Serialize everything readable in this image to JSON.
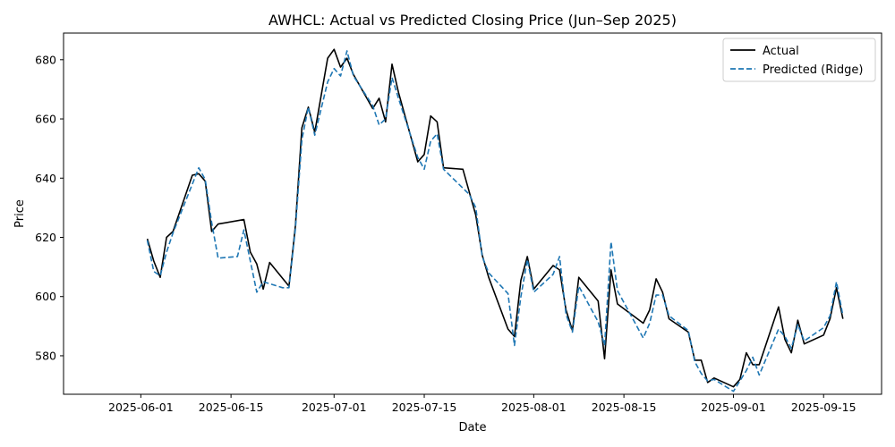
{
  "chart_data": {
    "type": "line",
    "title": "AWHCL: Actual vs Predicted Closing Price (Jun–Sep 2025)",
    "xlabel": "Date",
    "ylabel": "Price",
    "xlim": [
      "2025-05-20",
      "2025-09-24"
    ],
    "ylim": [
      567,
      689
    ],
    "x_ticks": [
      "2025-06-01",
      "2025-06-15",
      "2025-07-01",
      "2025-07-15",
      "2025-08-01",
      "2025-08-15",
      "2025-09-01",
      "2025-09-15"
    ],
    "y_ticks": [
      580,
      600,
      620,
      640,
      660,
      680
    ],
    "legend_position": "upper right",
    "grid": false,
    "series": [
      {
        "name": "Actual",
        "color": "#000000",
        "style": "solid",
        "points": [
          [
            "2025-06-02",
            619.5
          ],
          [
            "2025-06-03",
            612.0
          ],
          [
            "2025-06-04",
            606.5
          ],
          [
            "2025-06-05",
            620.0
          ],
          [
            "2025-06-06",
            622.0
          ],
          [
            "2025-06-09",
            641.0
          ],
          [
            "2025-06-10",
            641.5
          ],
          [
            "2025-06-11",
            639.0
          ],
          [
            "2025-06-12",
            622.0
          ],
          [
            "2025-06-13",
            624.5
          ],
          [
            "2025-06-17",
            626.0
          ],
          [
            "2025-06-18",
            615.0
          ],
          [
            "2025-06-19",
            611.0
          ],
          [
            "2025-06-20",
            602.5
          ],
          [
            "2025-06-21",
            611.5
          ],
          [
            "2025-06-24",
            603.5
          ],
          [
            "2025-06-25",
            624.0
          ],
          [
            "2025-06-26",
            657.0
          ],
          [
            "2025-06-27",
            664.0
          ],
          [
            "2025-06-28",
            655.5
          ],
          [
            "2025-06-30",
            680.5
          ],
          [
            "2025-07-01",
            683.5
          ],
          [
            "2025-07-02",
            677.5
          ],
          [
            "2025-07-03",
            680.5
          ],
          [
            "2025-07-04",
            675.0
          ],
          [
            "2025-07-07",
            663.5
          ],
          [
            "2025-07-08",
            667.0
          ],
          [
            "2025-07-09",
            659.0
          ],
          [
            "2025-07-10",
            678.5
          ],
          [
            "2025-07-11",
            669.0
          ],
          [
            "2025-07-14",
            645.5
          ],
          [
            "2025-07-15",
            648.0
          ],
          [
            "2025-07-16",
            661.0
          ],
          [
            "2025-07-17",
            659.0
          ],
          [
            "2025-07-18",
            643.5
          ],
          [
            "2025-07-21",
            643.0
          ],
          [
            "2025-07-23",
            627.5
          ],
          [
            "2025-07-24",
            614.0
          ],
          [
            "2025-07-25",
            606.5
          ],
          [
            "2025-07-28",
            589.0
          ],
          [
            "2025-07-29",
            586.5
          ],
          [
            "2025-07-30",
            605.5
          ],
          [
            "2025-07-31",
            613.5
          ],
          [
            "2025-08-01",
            602.5
          ],
          [
            "2025-08-04",
            610.5
          ],
          [
            "2025-08-05",
            609.0
          ],
          [
            "2025-08-06",
            595.5
          ],
          [
            "2025-08-07",
            588.5
          ],
          [
            "2025-08-08",
            606.5
          ],
          [
            "2025-08-11",
            598.5
          ],
          [
            "2025-08-12",
            579.0
          ],
          [
            "2025-08-13",
            609.0
          ],
          [
            "2025-08-14",
            597.5
          ],
          [
            "2025-08-18",
            591.0
          ],
          [
            "2025-08-19",
            595.5
          ],
          [
            "2025-08-20",
            606.0
          ],
          [
            "2025-08-21",
            601.5
          ],
          [
            "2025-08-22",
            592.5
          ],
          [
            "2025-08-25",
            588.0
          ],
          [
            "2025-08-26",
            578.5
          ],
          [
            "2025-08-27",
            578.5
          ],
          [
            "2025-08-28",
            571.0
          ],
          [
            "2025-08-29",
            572.5
          ],
          [
            "2025-09-01",
            569.5
          ],
          [
            "2025-09-02",
            572.0
          ],
          [
            "2025-09-03",
            581.0
          ],
          [
            "2025-09-04",
            577.0
          ],
          [
            "2025-09-05",
            577.0
          ],
          [
            "2025-09-08",
            596.5
          ],
          [
            "2025-09-09",
            585.5
          ],
          [
            "2025-09-10",
            581.0
          ],
          [
            "2025-09-11",
            592.0
          ],
          [
            "2025-09-12",
            584.0
          ],
          [
            "2025-09-15",
            587.0
          ],
          [
            "2025-09-16",
            592.5
          ],
          [
            "2025-09-17",
            603.0
          ],
          [
            "2025-09-18",
            592.5
          ]
        ]
      },
      {
        "name": "Predicted (Ridge)",
        "color": "#1f77b4",
        "style": "dashed",
        "points": [
          [
            "2025-06-02",
            619.0
          ],
          [
            "2025-06-03",
            608.5
          ],
          [
            "2025-06-04",
            607.0
          ],
          [
            "2025-06-05",
            615.0
          ],
          [
            "2025-06-06",
            621.5
          ],
          [
            "2025-06-09",
            638.0
          ],
          [
            "2025-06-10",
            643.5
          ],
          [
            "2025-06-11",
            639.5
          ],
          [
            "2025-06-12",
            625.0
          ],
          [
            "2025-06-13",
            613.0
          ],
          [
            "2025-06-16",
            613.5
          ],
          [
            "2025-06-17",
            622.5
          ],
          [
            "2025-06-18",
            612.0
          ],
          [
            "2025-06-19",
            601.5
          ],
          [
            "2025-06-20",
            605.0
          ],
          [
            "2025-06-23",
            603.0
          ],
          [
            "2025-06-24",
            603.0
          ],
          [
            "2025-06-25",
            623.0
          ],
          [
            "2025-06-26",
            653.0
          ],
          [
            "2025-06-27",
            664.0
          ],
          [
            "2025-06-28",
            654.5
          ],
          [
            "2025-06-30",
            672.5
          ],
          [
            "2025-07-01",
            677.0
          ],
          [
            "2025-07-02",
            674.5
          ],
          [
            "2025-07-03",
            683.0
          ],
          [
            "2025-07-04",
            674.5
          ],
          [
            "2025-07-07",
            664.5
          ],
          [
            "2025-07-08",
            658.0
          ],
          [
            "2025-07-09",
            660.0
          ],
          [
            "2025-07-10",
            674.0
          ],
          [
            "2025-07-11",
            667.0
          ],
          [
            "2025-07-14",
            647.0
          ],
          [
            "2025-07-15",
            643.0
          ],
          [
            "2025-07-16",
            652.5
          ],
          [
            "2025-07-17",
            655.0
          ],
          [
            "2025-07-18",
            643.0
          ],
          [
            "2025-07-22",
            634.5
          ],
          [
            "2025-07-23",
            630.0
          ],
          [
            "2025-07-24",
            613.5
          ],
          [
            "2025-07-25",
            608.0
          ],
          [
            "2025-07-28",
            601.0
          ],
          [
            "2025-07-29",
            583.5
          ],
          [
            "2025-07-30",
            600.0
          ],
          [
            "2025-07-31",
            612.5
          ],
          [
            "2025-08-01",
            601.5
          ],
          [
            "2025-08-04",
            607.5
          ],
          [
            "2025-08-05",
            613.5
          ],
          [
            "2025-08-06",
            594.0
          ],
          [
            "2025-08-07",
            588.0
          ],
          [
            "2025-08-08",
            603.5
          ],
          [
            "2025-08-11",
            591.5
          ],
          [
            "2025-08-12",
            583.5
          ],
          [
            "2025-08-13",
            618.5
          ],
          [
            "2025-08-14",
            602.0
          ],
          [
            "2025-08-18",
            586.0
          ],
          [
            "2025-08-19",
            591.0
          ],
          [
            "2025-08-20",
            600.5
          ],
          [
            "2025-08-21",
            600.5
          ],
          [
            "2025-08-22",
            593.5
          ],
          [
            "2025-08-25",
            588.5
          ],
          [
            "2025-08-26",
            578.0
          ],
          [
            "2025-08-27",
            574.0
          ],
          [
            "2025-08-28",
            571.5
          ],
          [
            "2025-08-29",
            572.0
          ],
          [
            "2025-09-01",
            568.0
          ],
          [
            "2025-09-02",
            571.5
          ],
          [
            "2025-09-03",
            575.0
          ],
          [
            "2025-09-04",
            579.5
          ],
          [
            "2025-09-05",
            573.5
          ],
          [
            "2025-09-08",
            589.0
          ],
          [
            "2025-09-09",
            586.5
          ],
          [
            "2025-09-10",
            582.5
          ],
          [
            "2025-09-11",
            590.5
          ],
          [
            "2025-09-12",
            585.0
          ],
          [
            "2025-09-15",
            589.5
          ],
          [
            "2025-09-16",
            593.5
          ],
          [
            "2025-09-17",
            605.0
          ],
          [
            "2025-09-18",
            593.5
          ]
        ]
      }
    ]
  }
}
